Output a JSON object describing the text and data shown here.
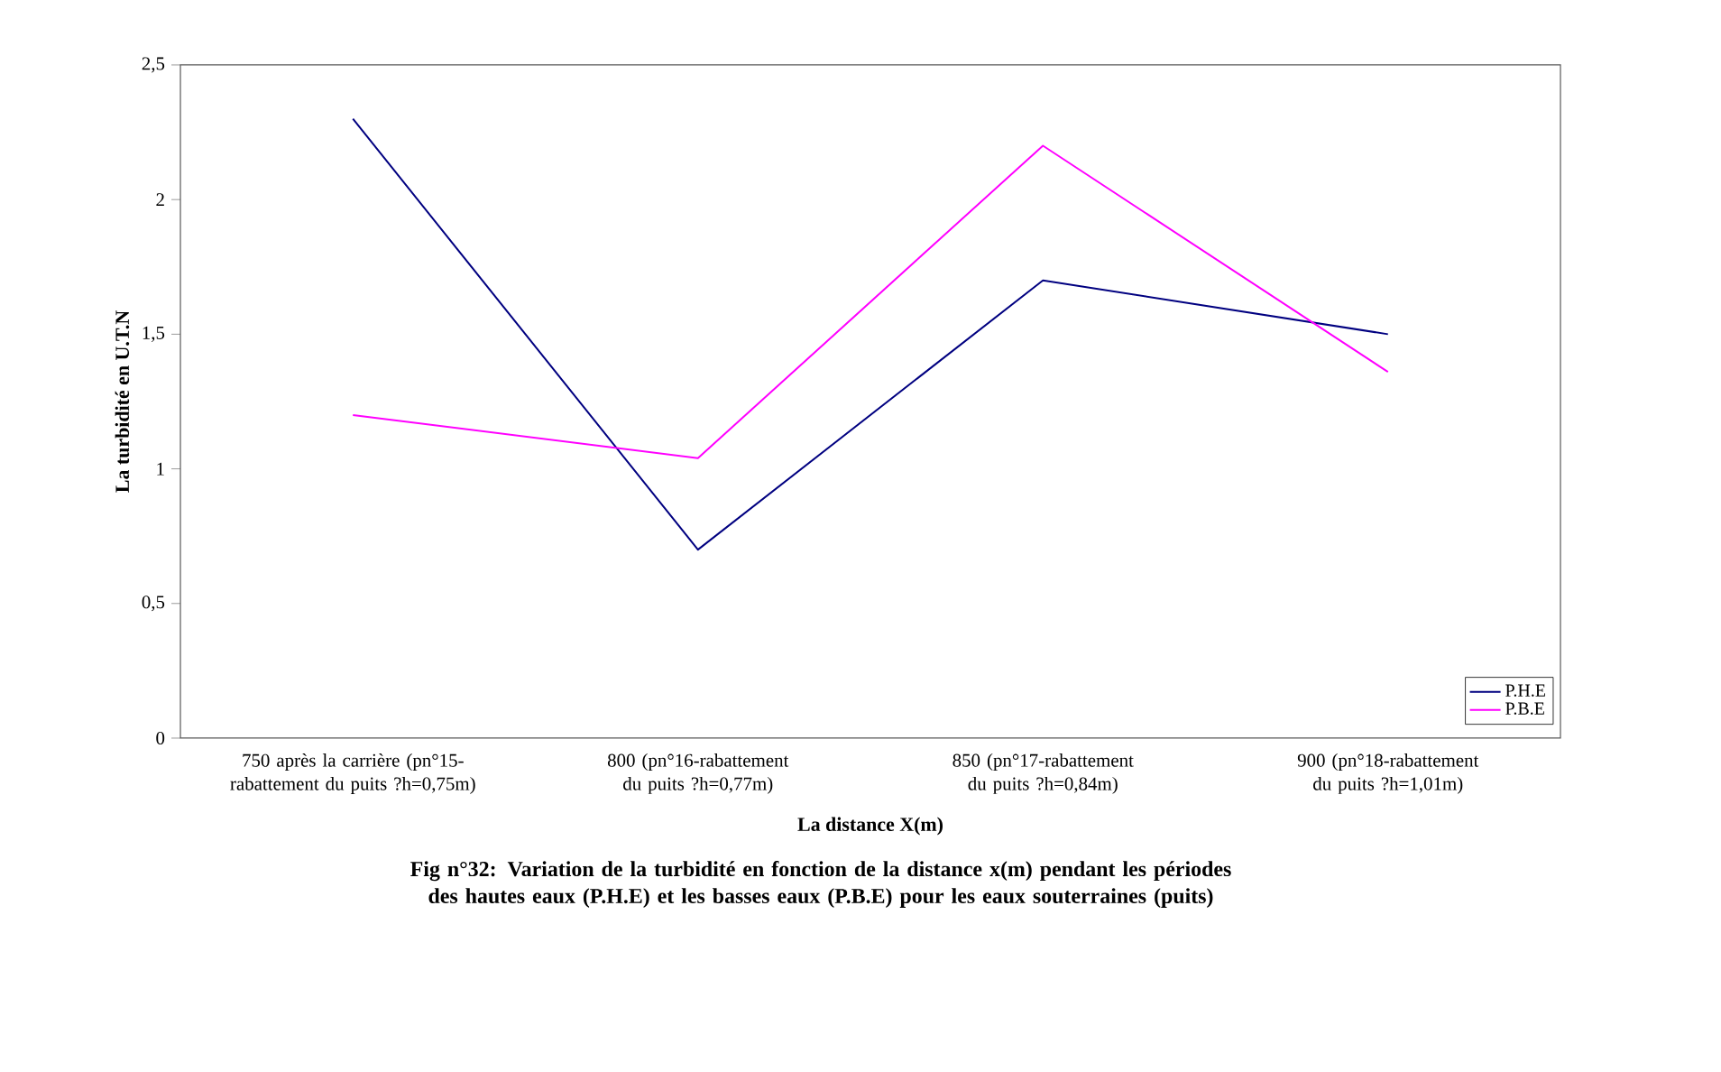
{
  "chart_data": {
    "type": "line",
    "xlabel": "La distance X(m)",
    "ylabel": "La turbidité en U.T.N",
    "categories": [
      "750 après la carrière (pn°15-rabattement du puits ?h=0,75m)",
      "800 (pn°16-rabattement du puits ?h=0,77m)",
      "850 (pn°17-rabattement du puits ?h=0,84m)",
      "900 (pn°18-rabattement du puits ?h=1,01m)"
    ],
    "series": [
      {
        "name": "P.H.E",
        "color": "#000080",
        "values": [
          2.3,
          0.7,
          1.7,
          1.5
        ]
      },
      {
        "name": "P.B.E",
        "color": "#ff00ff",
        "values": [
          1.2,
          1.04,
          2.2,
          1.36
        ]
      }
    ],
    "ylim": [
      0,
      2.5
    ],
    "yticks": [
      0,
      {
        "value": 0.5,
        "label": "0,5"
      },
      1,
      {
        "value": 1.5,
        "label": "1,5"
      },
      2,
      {
        "value": 2.5,
        "label": "2,5"
      }
    ],
    "grid": false,
    "legend": "bottom right",
    "marker": "none",
    "line_style": "solid",
    "annotations": [
      "Fig n°32: Variation de la turbidité en fonction de la distance x(m) pendant les périodes des hautes eaux (P.H.E) et les basses eaux (P.B.E) pour les eaux souterraines (puits)"
    ]
  }
}
